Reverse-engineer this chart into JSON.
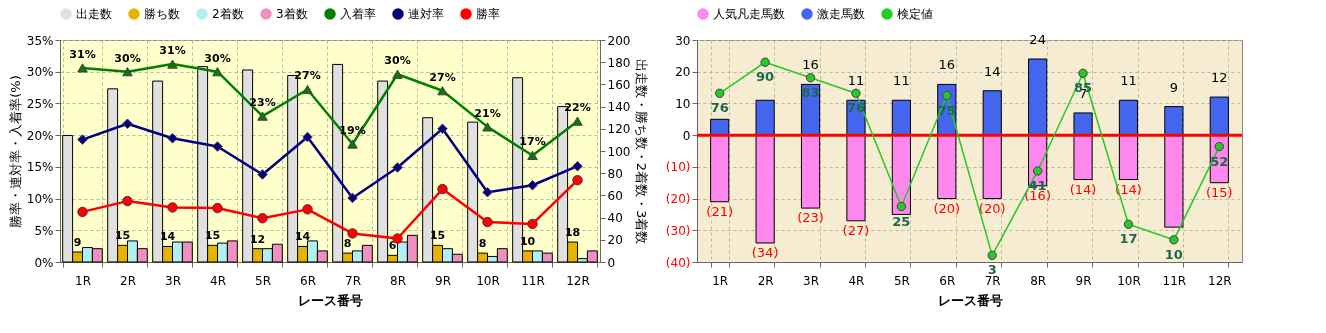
{
  "chart_data": [
    {
      "type": "bar",
      "categories": [
        "1R",
        "2R",
        "3R",
        "4R",
        "5R",
        "6R",
        "7R",
        "8R",
        "9R",
        "10R",
        "11R",
        "12R"
      ],
      "xlabel": "レース番号",
      "ylabel": "勝率・連対率・入着率(%)",
      "y2label": "出走数・勝ち数・2着数・3着数",
      "ylim": [
        0,
        35
      ],
      "yticks": [
        {
          "value": 0,
          "label": "0%"
        },
        {
          "value": 5,
          "label": "5%"
        },
        {
          "value": 10,
          "label": "10%"
        },
        {
          "value": 15,
          "label": "15%"
        },
        {
          "value": 20,
          "label": "20%"
        },
        {
          "value": 25,
          "label": "25%"
        },
        {
          "value": 30,
          "label": "30%"
        },
        {
          "value": 35,
          "label": "35%"
        }
      ],
      "y2lim": [
        0,
        200
      ],
      "y2ticks": [
        0,
        20,
        40,
        60,
        80,
        100,
        120,
        140,
        160,
        180,
        200
      ],
      "grid": true,
      "legend": "top",
      "series": [
        {
          "name": "出走数",
          "axis": "y2",
          "color": "#e0e0e0",
          "values": [
            114,
            156,
            163,
            176,
            173,
            168,
            178,
            163,
            130,
            126,
            166,
            140
          ]
        },
        {
          "name": "勝ち数",
          "axis": "y2",
          "color": "#e6b400",
          "data_labels": true,
          "values": [
            9,
            15,
            14,
            15,
            12,
            14,
            8,
            6,
            15,
            8,
            10,
            18
          ]
        },
        {
          "name": "2着数",
          "axis": "y2",
          "color": "#b0f0f0",
          "values": [
            13,
            19,
            18,
            17,
            12,
            19,
            10,
            18,
            12,
            5,
            10,
            3
          ]
        },
        {
          "name": "3着数",
          "axis": "y2",
          "color": "#f090c0",
          "values": [
            12,
            12,
            18,
            19,
            16,
            10,
            15,
            24,
            7,
            12,
            8,
            10
          ]
        },
        {
          "name": "入着率",
          "type": "line",
          "color": "#008000",
          "marker": "triangle",
          "values": [
            30.6,
            30.0,
            31.2,
            30.0,
            23.0,
            27.2,
            18.6,
            29.6,
            27.0,
            21.3,
            16.8,
            22.2
          ],
          "value_labels": [
            "31%",
            "30%",
            "31%",
            "30%",
            "23%",
            "27%",
            "19%",
            "30%",
            "27%",
            "21%",
            "17%",
            "22%"
          ]
        },
        {
          "name": "連対率",
          "type": "line",
          "color": "#000080",
          "marker": "diamond",
          "values": [
            19.3,
            21.8,
            19.5,
            18.2,
            13.8,
            19.7,
            10.1,
            14.9,
            21.0,
            11.0,
            12.1,
            15.1
          ]
        },
        {
          "name": "勝率",
          "type": "line",
          "color": "#ff0000",
          "marker": "circle",
          "values": [
            7.9,
            9.6,
            8.6,
            8.5,
            6.9,
            8.3,
            4.5,
            3.7,
            11.5,
            6.3,
            6.0,
            12.9
          ]
        }
      ]
    },
    {
      "type": "bar",
      "stacked": true,
      "categories": [
        "1R",
        "2R",
        "3R",
        "4R",
        "5R",
        "6R",
        "7R",
        "8R",
        "9R",
        "10R",
        "11R",
        "12R"
      ],
      "xlabel": "レース番号",
      "ylim": [
        -40,
        30
      ],
      "yticks": [
        {
          "value": -40,
          "label": "(40)"
        },
        {
          "value": -30,
          "label": "(30)"
        },
        {
          "value": -20,
          "label": "(20)"
        },
        {
          "value": -10,
          "label": "(10)"
        },
        0,
        10,
        20,
        30
      ],
      "y2lim": [
        0,
        100
      ],
      "grid": true,
      "legend": "top",
      "ref_lines": [
        {
          "axis": "y",
          "value": 0,
          "color": "#ff0000"
        }
      ],
      "series": [
        {
          "name": "人気凡走馬数",
          "color": "#ff88ee",
          "values": [
            -21,
            -34,
            -23,
            -27,
            -25,
            -20,
            -20,
            -16,
            -14,
            -14,
            -29,
            -15
          ],
          "value_labels": [
            "(21)",
            "(34)",
            "(23)",
            "(27)",
            null,
            "(20)",
            "(20)",
            "(16)",
            "(14)",
            "(14)",
            null,
            "(15)"
          ]
        },
        {
          "name": "激走馬数",
          "color": "#4466ee",
          "values": [
            5,
            11,
            16,
            11,
            11,
            16,
            14,
            24,
            7,
            11,
            9,
            12
          ],
          "value_labels": [
            null,
            null,
            "16",
            "11",
            "11",
            "16",
            "14",
            "24",
            "7",
            "11",
            "9",
            "12"
          ]
        },
        {
          "name": "検定値",
          "type": "line",
          "axis": "y2",
          "color": "#22cc22",
          "marker": "circle",
          "data_labels": true,
          "values": [
            76,
            90,
            83,
            76,
            25,
            75,
            3,
            41,
            85,
            17,
            10,
            52
          ]
        }
      ]
    }
  ]
}
